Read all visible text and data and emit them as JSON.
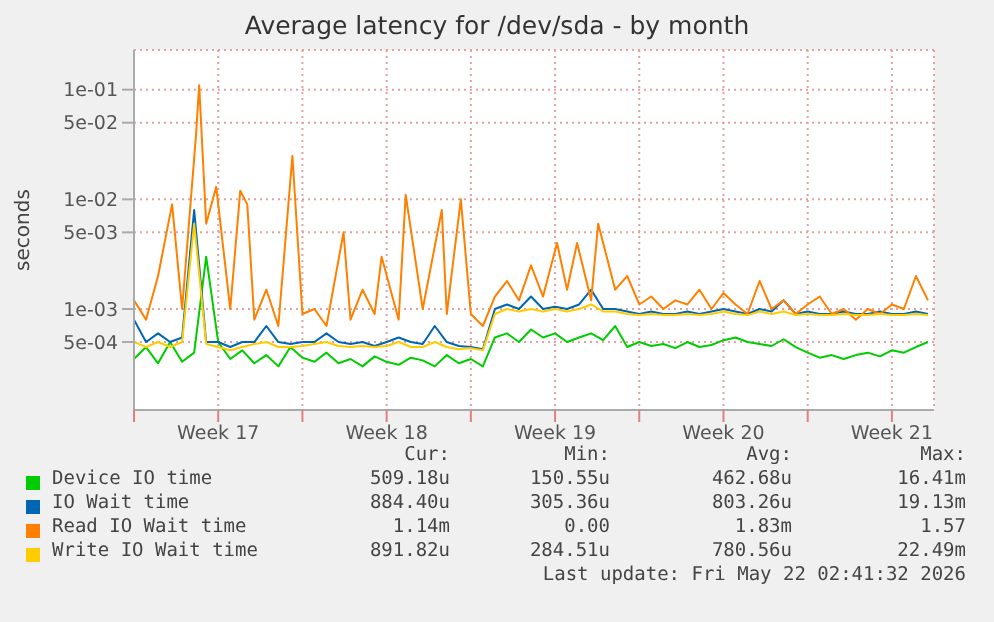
{
  "chart_data": {
    "type": "line",
    "title": "Average latency for /dev/sda - by month",
    "ylabel": "seconds",
    "x": [
      "2026-04-20T00:00",
      "2026-04-20T12:00",
      "2026-04-21T00:00",
      "2026-04-21T12:00",
      "2026-04-22T00:00",
      "2026-04-22T12:00",
      "2026-04-23T00:00",
      "2026-04-23T12:00",
      "2026-04-24T00:00",
      "2026-04-24T12:00",
      "2026-04-25T00:00",
      "2026-04-25T12:00",
      "2026-04-26T00:00",
      "2026-04-26T12:00",
      "2026-04-27T00:00",
      "2026-04-27T12:00",
      "2026-04-28T00:00",
      "2026-04-28T12:00",
      "2026-04-29T00:00",
      "2026-04-29T12:00",
      "2026-04-30T00:00",
      "2026-04-30T12:00",
      "2026-05-01T00:00",
      "2026-05-01T12:00",
      "2026-05-02T00:00",
      "2026-05-02T12:00",
      "2026-05-03T00:00",
      "2026-05-03T12:00",
      "2026-05-04T00:00",
      "2026-05-04T12:00",
      "2026-05-05T00:00",
      "2026-05-05T12:00",
      "2026-05-06T00:00",
      "2026-05-06T12:00",
      "2026-05-07T00:00",
      "2026-05-07T12:00",
      "2026-05-08T00:00",
      "2026-05-08T12:00",
      "2026-05-09T00:00",
      "2026-05-09T12:00",
      "2026-05-10T00:00",
      "2026-05-10T12:00",
      "2026-05-11T00:00",
      "2026-05-11T12:00",
      "2026-05-12T00:00",
      "2026-05-12T12:00",
      "2026-05-13T00:00",
      "2026-05-13T12:00",
      "2026-05-14T00:00",
      "2026-05-14T12:00",
      "2026-05-15T00:00",
      "2026-05-15T12:00",
      "2026-05-16T00:00",
      "2026-05-16T12:00",
      "2026-05-17T00:00",
      "2026-05-17T12:00",
      "2026-05-18T00:00",
      "2026-05-18T12:00",
      "2026-05-19T00:00",
      "2026-05-19T12:00",
      "2026-05-20T00:00",
      "2026-05-20T12:00",
      "2026-05-21T00:00",
      "2026-05-21T12:00",
      "2026-05-22T00:00",
      "2026-05-22T12:00",
      "2026-05-23T00:00"
    ],
    "series": [
      {
        "name": "Device IO time",
        "color": "#00cc00",
        "values": [
          0.00035,
          0.00045,
          0.00032,
          0.0005,
          0.00033,
          0.0004,
          0.003,
          0.0005,
          0.00035,
          0.00042,
          0.00032,
          0.00038,
          0.0003,
          0.00045,
          0.00036,
          0.00033,
          0.0004,
          0.00032,
          0.00035,
          0.0003,
          0.00037,
          0.00033,
          0.00031,
          0.00036,
          0.00034,
          0.0003,
          0.00038,
          0.00032,
          0.00035,
          0.0003,
          0.00055,
          0.0006,
          0.0005,
          0.00065,
          0.00055,
          0.0006,
          0.0005,
          0.00055,
          0.0006,
          0.00052,
          0.0007,
          0.00045,
          0.0005,
          0.00046,
          0.00048,
          0.00044,
          0.0005,
          0.00045,
          0.00047,
          0.00052,
          0.00055,
          0.0005,
          0.00048,
          0.00046,
          0.00053,
          0.00045,
          0.0004,
          0.00036,
          0.00038,
          0.00035,
          0.00038,
          0.0004,
          0.00037,
          0.00042,
          0.0004,
          0.00045,
          0.0005
        ]
      },
      {
        "name": "IO Wait time",
        "color": "#0066b3",
        "values": [
          0.0008,
          0.0005,
          0.0006,
          0.0005,
          0.00055,
          0.008,
          0.0005,
          0.0005,
          0.00045,
          0.0005,
          0.0005,
          0.0007,
          0.0005,
          0.00048,
          0.0005,
          0.0005,
          0.0006,
          0.0005,
          0.00048,
          0.0005,
          0.00046,
          0.0005,
          0.00055,
          0.0005,
          0.00048,
          0.0007,
          0.0005,
          0.00046,
          0.00045,
          0.00043,
          0.001,
          0.0011,
          0.001,
          0.0013,
          0.001,
          0.00105,
          0.001,
          0.0011,
          0.0015,
          0.001,
          0.001,
          0.00095,
          0.0009,
          0.00095,
          0.0009,
          0.0009,
          0.00095,
          0.0009,
          0.00095,
          0.001,
          0.00095,
          0.0009,
          0.001,
          0.00095,
          0.0012,
          0.0009,
          0.00095,
          0.0009,
          0.0009,
          0.00095,
          0.0009,
          0.0009,
          0.00095,
          0.0009,
          0.0009,
          0.00095,
          0.0009
        ]
      },
      {
        "name": "Read IO Wait time",
        "color": "#ff8000",
        "x": [
          "2026-04-20T00:00",
          "2026-04-20T12:00",
          "2026-04-21T00:00",
          "2026-04-21T14:00",
          "2026-04-22T00:00",
          "2026-04-22T14:00",
          "2026-04-22T17:00",
          "2026-04-23T00:00",
          "2026-04-23T10:00",
          "2026-04-24T00:00",
          "2026-04-24T10:00",
          "2026-04-24T17:00",
          "2026-04-25T00:00",
          "2026-04-25T12:00",
          "2026-04-26T00:00",
          "2026-04-26T14:00",
          "2026-04-27T00:00",
          "2026-04-27T12:00",
          "2026-04-28T00:00",
          "2026-04-28T17:00",
          "2026-04-29T00:00",
          "2026-04-29T12:00",
          "2026-04-30T00:00",
          "2026-04-30T07:00",
          "2026-05-01T00:00",
          "2026-05-01T07:00",
          "2026-05-02T00:00",
          "2026-05-02T19:00",
          "2026-05-03T00:00",
          "2026-05-03T14:00",
          "2026-05-04T00:00",
          "2026-05-04T12:00",
          "2026-05-05T00:00",
          "2026-05-05T12:00",
          "2026-05-06T00:00",
          "2026-05-06T12:00",
          "2026-05-07T00:00",
          "2026-05-07T14:00",
          "2026-05-08T00:00",
          "2026-05-08T10:00",
          "2026-05-09T00:00",
          "2026-05-09T07:00",
          "2026-05-10T00:00",
          "2026-05-10T12:00",
          "2026-05-11T00:00",
          "2026-05-11T12:00",
          "2026-05-12T00:00",
          "2026-05-12T12:00",
          "2026-05-13T00:00",
          "2026-05-13T12:00",
          "2026-05-14T00:00",
          "2026-05-14T12:00",
          "2026-05-15T00:00",
          "2026-05-15T12:00",
          "2026-05-16T00:00",
          "2026-05-16T12:00",
          "2026-05-17T00:00",
          "2026-05-17T12:00",
          "2026-05-18T00:00",
          "2026-05-18T12:00",
          "2026-05-19T00:00",
          "2026-05-19T12:00",
          "2026-05-20T00:00",
          "2026-05-20T12:00",
          "2026-05-21T00:00",
          "2026-05-21T12:00",
          "2026-05-22T00:00",
          "2026-05-22T12:00",
          "2026-05-23T00:00"
        ],
        "values": [
          0.0012,
          0.0008,
          0.002,
          0.009,
          0.001,
          0.04,
          0.11,
          0.006,
          0.013,
          0.001,
          0.012,
          0.009,
          0.0008,
          0.0015,
          0.0007,
          0.025,
          0.0009,
          0.001,
          0.0007,
          0.005,
          0.0008,
          0.0015,
          0.0009,
          0.003,
          0.0008,
          0.011,
          0.001,
          0.008,
          0.0009,
          0.01,
          0.0009,
          0.0007,
          0.0013,
          0.0018,
          0.0012,
          0.0025,
          0.0013,
          0.004,
          0.0015,
          0.004,
          0.0012,
          0.006,
          0.0015,
          0.002,
          0.0011,
          0.0013,
          0.001,
          0.0012,
          0.0011,
          0.0015,
          0.001,
          0.0014,
          0.0011,
          0.0009,
          0.0018,
          0.001,
          0.0012,
          0.0009,
          0.0011,
          0.0013,
          0.0009,
          0.001,
          0.0008,
          0.001,
          0.0009,
          0.0011,
          0.001,
          0.002,
          0.0012
        ]
      },
      {
        "name": "Write IO Wait time",
        "color": "#ffcc00",
        "values": [
          0.0005,
          0.00045,
          0.0005,
          0.00045,
          0.0005,
          0.006,
          0.00048,
          0.00045,
          0.00042,
          0.00045,
          0.00048,
          0.0005,
          0.00045,
          0.00045,
          0.00046,
          0.00048,
          0.0005,
          0.00046,
          0.00045,
          0.00046,
          0.00045,
          0.00046,
          0.0005,
          0.00045,
          0.00045,
          0.0005,
          0.00045,
          0.00043,
          0.00044,
          0.00042,
          0.0009,
          0.001,
          0.00095,
          0.001,
          0.00095,
          0.001,
          0.00095,
          0.001,
          0.0011,
          0.00095,
          0.00095,
          0.0009,
          0.00088,
          0.0009,
          0.00088,
          0.00088,
          0.0009,
          0.00088,
          0.0009,
          0.00095,
          0.0009,
          0.00088,
          0.00095,
          0.0009,
          0.00095,
          0.00088,
          0.0009,
          0.00088,
          0.00088,
          0.0009,
          0.00088,
          0.00088,
          0.0009,
          0.00088,
          0.00088,
          0.0009,
          0.00088
        ]
      }
    ],
    "xlim": [
      "2026-04-20T00:00",
      "2026-05-23T06:00"
    ],
    "xticks": [
      {
        "value": "2026-04-20T00:00",
        "label": null
      },
      {
        "value": "2026-04-23T12:00",
        "label": "Week 17"
      },
      {
        "value": "2026-04-27T00:00",
        "label": null
      },
      {
        "value": "2026-04-30T12:00",
        "label": "Week 18"
      },
      {
        "value": "2026-05-04T00:00",
        "label": null
      },
      {
        "value": "2026-05-07T12:00",
        "label": "Week 19"
      },
      {
        "value": "2026-05-11T00:00",
        "label": null
      },
      {
        "value": "2026-05-14T12:00",
        "label": "Week 20"
      },
      {
        "value": "2026-05-18T00:00",
        "label": null
      },
      {
        "value": "2026-05-21T12:00",
        "label": "Week 21"
      }
    ],
    "ylim": [
      0.00012,
      0.23
    ],
    "yticks": [
      {
        "value": 0.0005,
        "label": "5e-04"
      },
      {
        "value": 0.001,
        "label": "1e-03"
      },
      {
        "value": 0.005,
        "label": "5e-03"
      },
      {
        "value": 0.01,
        "label": "1e-02"
      },
      {
        "value": 0.05,
        "label": "5e-02"
      },
      {
        "value": 0.1,
        "label": "1e-01"
      }
    ],
    "log": true,
    "grid": true,
    "legend": "bottom",
    "annotations": [
      "Cur:",
      "Min:",
      "Avg:",
      "Max:",
      "509.18u",
      "150.55u",
      "462.68u",
      "16.41m",
      "884.40u",
      "305.36u",
      "803.26u",
      "19.13m",
      "1.14m",
      "0.00",
      "1.83m",
      "1.57",
      "891.82u",
      "284.51u",
      "780.56u",
      "22.49m",
      "Last update: Fri May 22 02:41:32 2026"
    ]
  }
}
